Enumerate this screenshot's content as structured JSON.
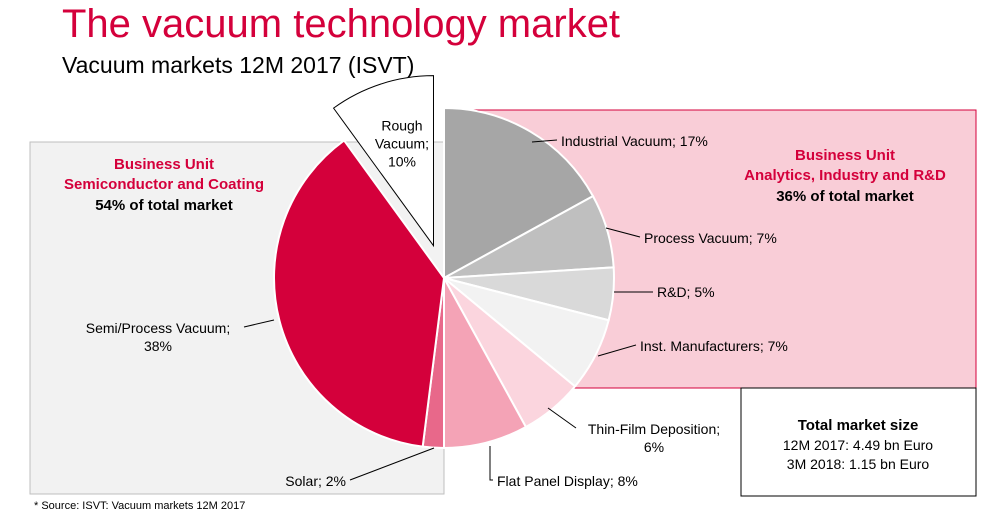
{
  "header": {
    "title": "The vacuum technology market",
    "subtitle": "Vacuum markets 12M 2017 (ISVT)"
  },
  "footer": {
    "source": "* Source: ISVT: Vacuum markets 12M 2017"
  },
  "business_units": {
    "semiconductor": {
      "line1": "Business Unit",
      "line2": "Semiconductor and Coating",
      "share": "54% of total market"
    },
    "analytics": {
      "line1": "Business Unit",
      "line2": "Analytics, Industry and R&D",
      "share": "36% of total market"
    }
  },
  "market_size": {
    "title": "Total market size",
    "line1": "12M 2017: 4.49 bn Euro",
    "line2": "3M 2018: 1.15 bn Euro"
  },
  "colors": {
    "accent": "#d4003b",
    "semi_band": "#f2f2f2",
    "analytics_band": "#f9cdd7"
  },
  "chart_data": {
    "type": "pie",
    "slices": [
      {
        "label": "Industrial Vacuum; 17%",
        "value": 17,
        "color": "#a6a6a6"
      },
      {
        "label": "Process Vacuum; 7%",
        "value": 7,
        "color": "#bfbfbf"
      },
      {
        "label": "R&D; 5%",
        "value": 5,
        "color": "#d9d9d9"
      },
      {
        "label": "Inst. Manufacturers; 7%",
        "value": 7,
        "color": "#f2f2f2"
      },
      {
        "label": "Thin-Film Deposition; 6%",
        "value": 6,
        "color": "#fbd5de"
      },
      {
        "label": "Flat Panel Display; 8%",
        "value": 8,
        "color": "#f4a3b6"
      },
      {
        "label": "Solar; 2%",
        "value": 2,
        "color": "#e8688a"
      },
      {
        "label": "Semi/Process Vacuum; 38%",
        "value": 38,
        "color": "#d4003b"
      },
      {
        "label": "Rough Vacuum; 10%",
        "value": 10,
        "color": "#ffffff",
        "exploded": true
      }
    ]
  }
}
